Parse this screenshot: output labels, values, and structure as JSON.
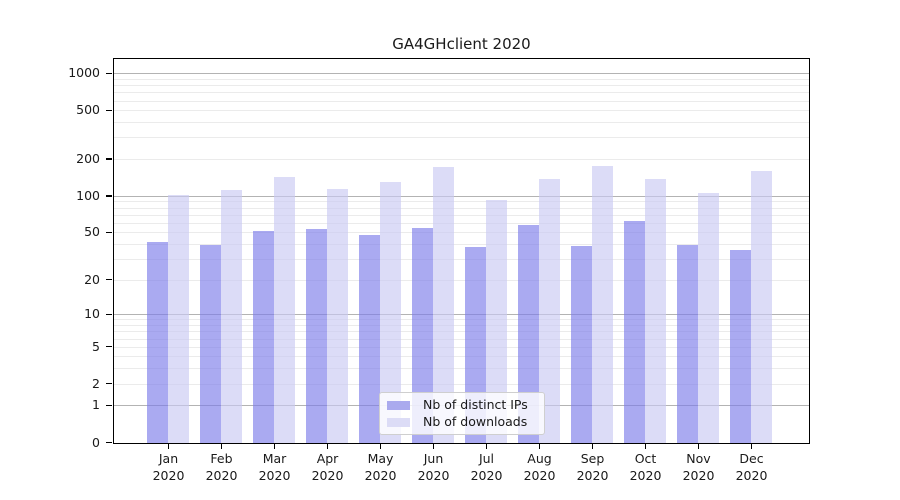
{
  "chart_data": {
    "type": "bar",
    "title": "GA4GHclient 2020",
    "categories": [
      "Jan 2020",
      "Feb 2020",
      "Mar 2020",
      "Apr 2020",
      "May 2020",
      "Jun 2020",
      "Jul 2020",
      "Aug 2020",
      "Sep 2020",
      "Oct 2020",
      "Nov 2020",
      "Dec 2020"
    ],
    "series": [
      {
        "name": "Nb of distinct IPs",
        "color": "#aaaaee",
        "css_color": "rgba(124,124,233,0.65)",
        "values": [
          42,
          40,
          52,
          54,
          48,
          55,
          38,
          58,
          39,
          63,
          40,
          36
        ]
      },
      {
        "name": "Nb of downloads",
        "color": "#dcdcf6",
        "css_color": "rgba(201,201,243,0.65)",
        "values": [
          103,
          112,
          145,
          115,
          130,
          174,
          94,
          139,
          178,
          140,
          106,
          160
        ]
      }
    ],
    "yscale": "symlog",
    "yticks": [
      0,
      1,
      2,
      5,
      10,
      20,
      50,
      100,
      200,
      500,
      1000
    ],
    "ylim": [
      0,
      1340
    ],
    "xlabel": "",
    "ylabel": "",
    "grid": true,
    "legend_position": "lower center"
  },
  "colors": {
    "background": "#ffffff",
    "major_grid": "#b3b3b3",
    "minor_grid": "#ebebeb",
    "axis": "#000000",
    "text": "#1a1a1a"
  }
}
